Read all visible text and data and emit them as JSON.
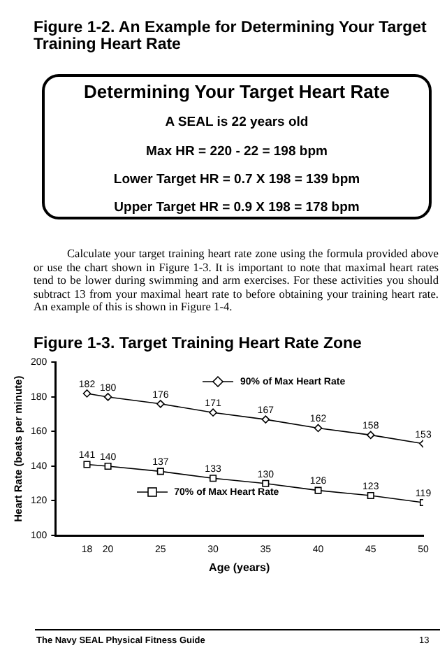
{
  "chart_data": {
    "type": "line",
    "title": "Figure 1-3.   Target Training Heart Rate Zone",
    "xlabel": "Age (years)",
    "ylabel": "Heart Rate (beats per minute)",
    "x": [
      18,
      20,
      25,
      30,
      35,
      40,
      45,
      50
    ],
    "series": [
      {
        "name": "90% of Max Heart Rate",
        "color": "#000000",
        "marker": "diamond",
        "values": [
          182,
          180,
          176,
          171,
          167,
          162,
          158,
          153
        ]
      },
      {
        "name": "70% of Max Heart Rate",
        "color": "#000000",
        "marker": "square",
        "values": [
          141,
          140,
          137,
          133,
          130,
          126,
          123,
          119
        ]
      }
    ],
    "xlim": [
      15,
      50
    ],
    "xticks": [
      18,
      20,
      25,
      30,
      35,
      40,
      45,
      50
    ],
    "ylim": [
      100,
      200
    ],
    "yticks": [
      100,
      120,
      140,
      160,
      180,
      200
    ],
    "grid": false,
    "legend": "top right",
    "data_labels": true,
    "line_style": "solid",
    "annotations": [
      "Figure 1-2.   An Example for Determining Your Target Training Heart Rate",
      "Determining Your Target Heart Rate",
      "A SEAL is 22 years old",
      "Max HR = 220 - 22 = 198 bpm",
      "Lower Target HR = 0.7 X 198 = 139 bpm",
      "Upper Target HR = 0.9 X 198 = 178 bpm",
      "Calculate your target training heart rate zone using the formula provided above or use the chart shown in Figure 1-3. It is important to note that maximal heart rates tend to be lower during swimming and arm exercises. For these activities you should subtract 13 from your maximal heart rate to before obtaining your training heart rate. An example of this is shown in Figure 1-4.",
      "The Navy SEAL Physical Fitness Guide",
      "13"
    ]
  }
}
